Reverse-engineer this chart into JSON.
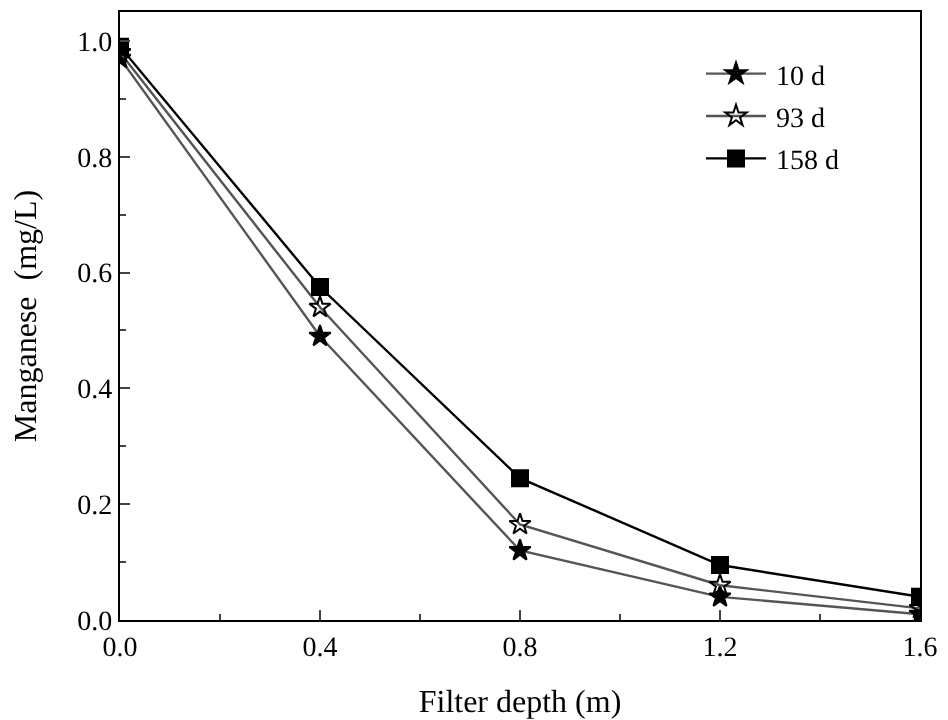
{
  "chart_data": {
    "type": "line",
    "xlabel": "Filter depth (m)",
    "ylabel": "Manganese  (mg/L)",
    "x": [
      0,
      0.4,
      0.8,
      1.2,
      1.6
    ],
    "xlim": [
      0,
      1.6
    ],
    "xticks": [
      {
        "value": 0,
        "label": "0.0"
      },
      0.4,
      0.8,
      1.2,
      1.6
    ],
    "ylim": [
      0,
      1.05
    ],
    "yticks": [
      {
        "value": 0,
        "label": "0.0"
      },
      0.2,
      0.4,
      0.6,
      0.8,
      {
        "value": 1,
        "label": "1.0"
      }
    ],
    "grid": false,
    "legend": "top right",
    "series": [
      {
        "name": "10 d",
        "color": "#555555",
        "marker": "star",
        "values": [
          0.97,
          0.49,
          0.12,
          0.04,
          0.01
        ]
      },
      {
        "name": "93 d",
        "color": "#555555",
        "marker": "star",
        "values": [
          0.98,
          0.54,
          0.165,
          0.06,
          0.02
        ]
      },
      {
        "name": "158 d",
        "color": "#000000",
        "marker": "square",
        "values": [
          0.99,
          0.575,
          0.245,
          0.095,
          0.04
        ]
      }
    ]
  }
}
